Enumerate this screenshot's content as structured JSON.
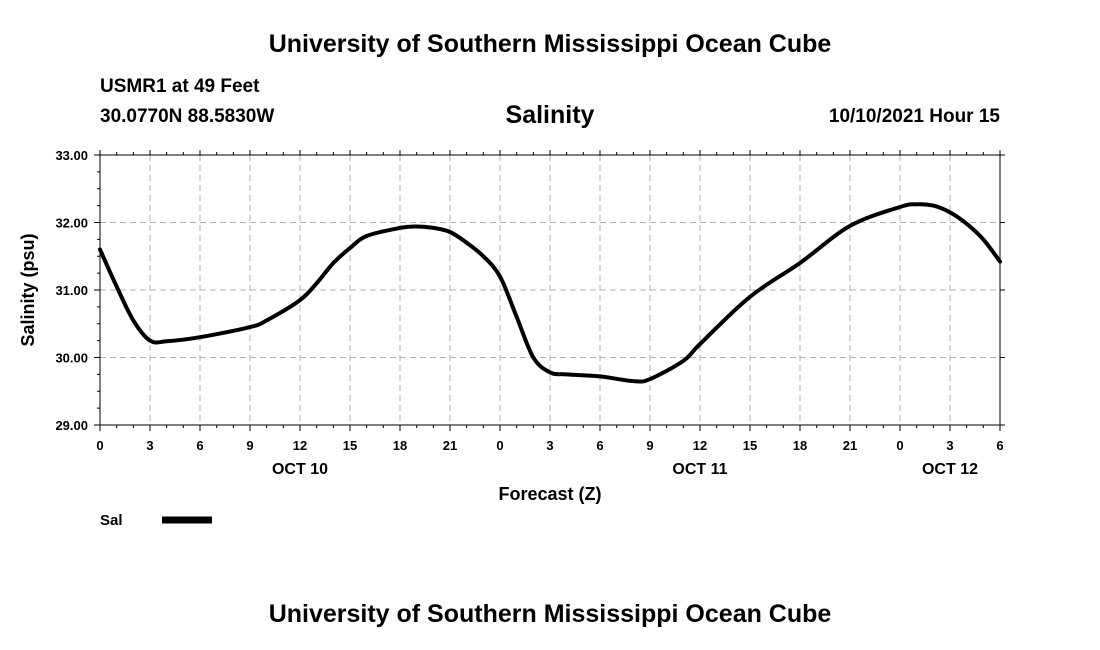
{
  "header": {
    "title": "University of Southern Mississippi Ocean Cube",
    "station": "USMR1 at 49 Feet",
    "coords": "30.0770N  88.5830W",
    "datetime": "10/10/2021 Hour 15"
  },
  "footer": {
    "title": "University of Southern Mississippi Ocean Cube"
  },
  "chart_data": {
    "type": "line",
    "title": "Salinity",
    "xlabel": "Forecast (Z)",
    "ylabel": "Salinity (psu)",
    "ylim": [
      29.0,
      33.0
    ],
    "xlim_hours": [
      0,
      54
    ],
    "y_ticks": [
      "29.00",
      "30.00",
      "31.00",
      "32.00",
      "33.00"
    ],
    "x_ticks": [
      "0",
      "3",
      "6",
      "9",
      "12",
      "15",
      "18",
      "21",
      "0",
      "3",
      "6",
      "9",
      "12",
      "15",
      "18",
      "21",
      "0",
      "3",
      "6"
    ],
    "day_labels": [
      {
        "label": "OCT 10",
        "hour": 12
      },
      {
        "label": "OCT 11",
        "hour": 36
      },
      {
        "label": "OCT 12",
        "hour": 51
      }
    ],
    "grid": true,
    "legend": {
      "placement": "bottom-left",
      "entries": [
        {
          "label": "Sal",
          "color": "#000000"
        }
      ]
    },
    "series": [
      {
        "name": "Sal",
        "color": "#000000",
        "x": [
          0,
          1,
          2,
          3,
          4,
          6,
          9,
          10,
          12,
          13,
          14,
          15,
          16,
          18,
          19,
          20,
          21,
          22,
          23,
          24,
          25,
          26,
          27,
          28,
          30,
          32,
          33,
          35,
          36,
          39,
          42,
          45,
          48,
          49,
          50,
          51,
          52,
          53,
          54
        ],
        "values": [
          31.6,
          31.05,
          30.55,
          30.25,
          30.24,
          30.3,
          30.45,
          30.55,
          30.85,
          31.1,
          31.4,
          31.62,
          31.8,
          31.92,
          31.94,
          31.92,
          31.86,
          31.7,
          31.5,
          31.2,
          30.6,
          30.0,
          29.78,
          29.75,
          29.72,
          29.65,
          29.68,
          29.95,
          30.2,
          30.9,
          31.4,
          31.95,
          32.23,
          32.27,
          32.25,
          32.15,
          31.98,
          31.75,
          31.42
        ]
      }
    ]
  }
}
